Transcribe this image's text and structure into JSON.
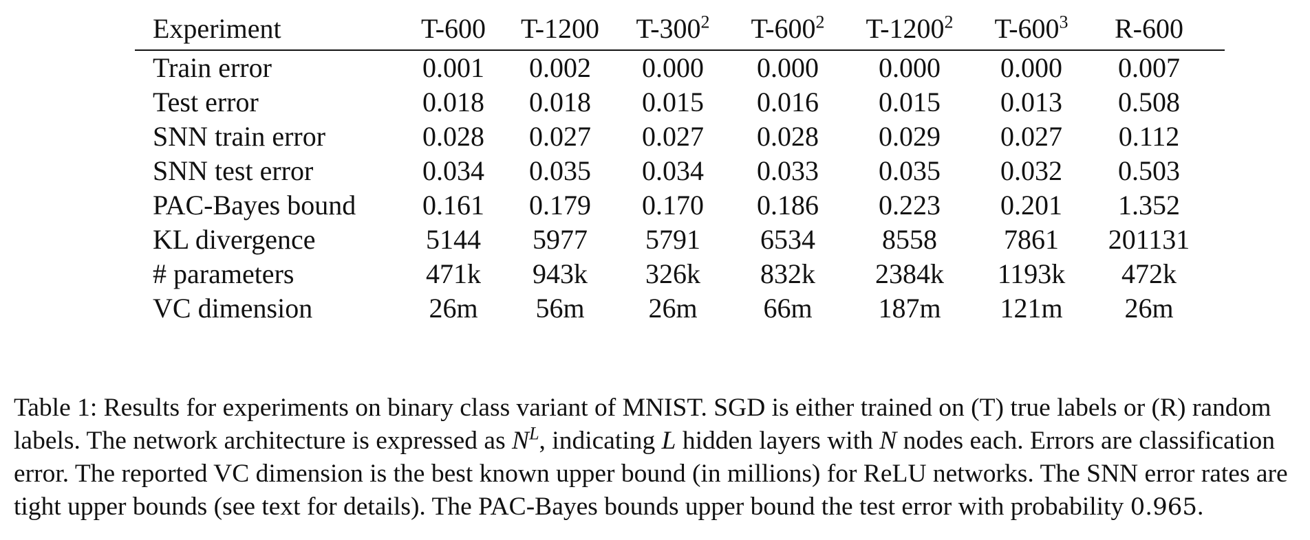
{
  "table": {
    "header_label": "Experiment",
    "columns": [
      {
        "base": "T-600",
        "exp": ""
      },
      {
        "base": "T-1200",
        "exp": ""
      },
      {
        "base": "T-300",
        "exp": "2"
      },
      {
        "base": "T-600",
        "exp": "2"
      },
      {
        "base": "T-1200",
        "exp": "2"
      },
      {
        "base": "T-600",
        "exp": "3"
      },
      {
        "base": "R-600",
        "exp": ""
      }
    ],
    "rows": [
      {
        "label": "Train error",
        "values": [
          "0.001",
          "0.002",
          "0.000",
          "0.000",
          "0.000",
          "0.000",
          "0.007"
        ]
      },
      {
        "label": "Test error",
        "values": [
          "0.018",
          "0.018",
          "0.015",
          "0.016",
          "0.015",
          "0.013",
          "0.508"
        ]
      },
      {
        "label": "SNN train error",
        "values": [
          "0.028",
          "0.027",
          "0.027",
          "0.028",
          "0.029",
          "0.027",
          "0.112"
        ]
      },
      {
        "label": "SNN test error",
        "values": [
          "0.034",
          "0.035",
          "0.034",
          "0.033",
          "0.035",
          "0.032",
          "0.503"
        ]
      },
      {
        "label": "PAC-Bayes bound",
        "values": [
          "0.161",
          "0.179",
          "0.170",
          "0.186",
          "0.223",
          "0.201",
          "1.352"
        ]
      },
      {
        "label": "KL divergence",
        "values": [
          "5144",
          "5977",
          "5791",
          "6534",
          "8558",
          "7861",
          "201131"
        ]
      },
      {
        "label": "# parameters",
        "values": [
          "471k",
          "943k",
          "326k",
          "832k",
          "2384k",
          "1193k",
          "472k"
        ]
      },
      {
        "label": "VC dimension",
        "values": [
          "26m",
          "56m",
          "26m",
          "66m",
          "187m",
          "121m",
          "26m"
        ]
      }
    ]
  },
  "caption": {
    "p1": "Table 1: Results for experiments on binary class variant of MNIST. SGD is either trained on (T) true labels or (R) random labels. The network architecture is expressed as ",
    "math_N": "N",
    "math_L_sup": "L",
    "p2": ", indicating ",
    "math_L": "L",
    "p3": " hidden layers with ",
    "math_N2": "N",
    "p4": " nodes each. Errors are classification error. The reported VC dimension is the best known upper bound (in millions) for ReLU networks. The SNN error rates are tight upper bounds (see text for details). The PAC-Bayes bounds upper bound the test error with probability ",
    "prob": "0.965",
    "p5": "."
  }
}
